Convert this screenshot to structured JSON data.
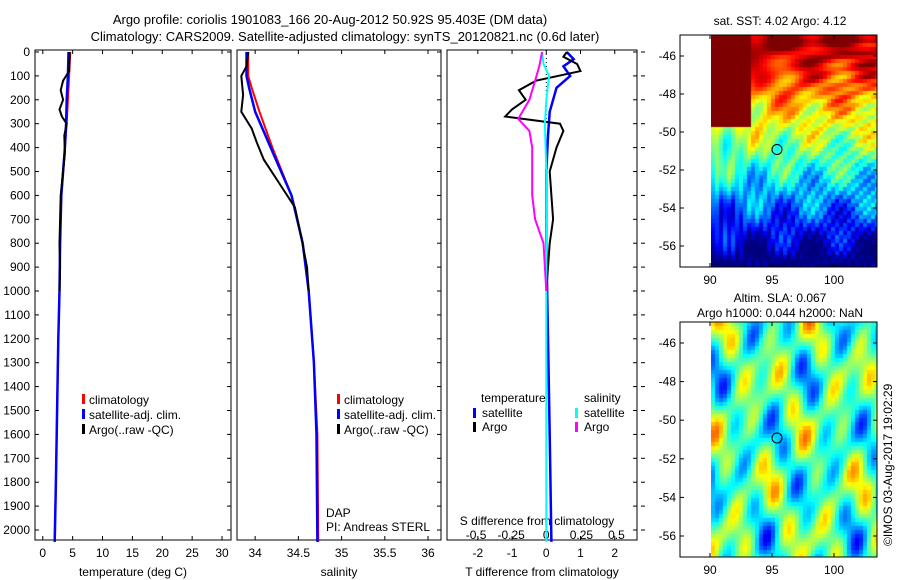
{
  "title_line1": "Argo profile: coriolis 1901083_166 20-Aug-2012 50.92S 95.403E (DM data)",
  "title_line2": "Climatology: CARS2009. Satellite-adjusted climatology: synTS_20120821.nc (0.6d later)",
  "colors": {
    "clim": "#ff0000",
    "sat": "#0000ff",
    "argo": "#000000",
    "sal_sat": "#00ffff",
    "sal_argo": "#ff00ff"
  },
  "chart_data": [
    {
      "type": "line",
      "xlabel": "temperature (deg C)",
      "ylabel": "",
      "xlim": [
        -1.3,
        31.5
      ],
      "ylim": [
        2050,
        0
      ],
      "xticks": [
        "0",
        "5",
        "10",
        "15",
        "20",
        "25",
        "30"
      ],
      "xtick_values": [
        0,
        5,
        10,
        15,
        20,
        25,
        30
      ],
      "yticks": [
        "0",
        "100",
        "200",
        "300",
        "400",
        "500",
        "600",
        "700",
        "800",
        "900",
        "1000",
        "1100",
        "1200",
        "1300",
        "1400",
        "1500",
        "1600",
        "1700",
        "1800",
        "1900",
        "2000"
      ],
      "legend": [
        "climatology",
        "satellite-adj. clim.",
        "Argo(..raw -QC)"
      ],
      "series": [
        {
          "name": "climatology",
          "color": "#ff0000",
          "depth": [
            0,
            100,
            200,
            300,
            400,
            500,
            600,
            800,
            1000,
            1200,
            1500,
            1800,
            2050
          ],
          "values": [
            4.6,
            4.4,
            4.2,
            4.0,
            3.7,
            3.4,
            3.1,
            2.9,
            2.8,
            2.6,
            2.4,
            2.2,
            2.0
          ]
        },
        {
          "name": "satellite-adj. clim.",
          "color": "#0000ff",
          "depth": [
            0,
            100,
            200,
            300,
            400,
            500,
            600,
            800,
            1000,
            1200,
            1500,
            1800,
            2050
          ],
          "values": [
            4.3,
            4.2,
            4.0,
            3.9,
            3.7,
            3.4,
            3.1,
            2.9,
            2.8,
            2.6,
            2.4,
            2.2,
            2.0
          ]
        },
        {
          "name": "Argo(..raw -QC)",
          "color": "#000000",
          "depth": [
            0,
            80,
            120,
            160,
            200,
            240,
            270,
            300,
            350,
            420,
            500,
            600,
            700,
            800,
            900,
            1000
          ],
          "values": [
            4.5,
            4.4,
            3.4,
            3.0,
            3.4,
            2.8,
            3.2,
            4.0,
            3.6,
            3.7,
            3.4,
            3.0,
            2.9,
            2.8,
            2.9,
            2.8
          ]
        }
      ]
    },
    {
      "type": "line",
      "xlabel": "salinity",
      "xlim": [
        33.79,
        36.15
      ],
      "ylim": [
        2050,
        0
      ],
      "xticks": [
        "34",
        "34.5",
        "35",
        "35.5",
        "36"
      ],
      "xtick_values": [
        34,
        34.5,
        35,
        35.5,
        36
      ],
      "legend": [
        "climatology",
        "satellite-adj. clim.",
        "Argo(..raw -QC)"
      ],
      "annotation": [
        "DAP",
        "PI: Andreas STERL"
      ],
      "series": [
        {
          "name": "climatology",
          "color": "#ff0000",
          "depth": [
            0,
            100,
            150,
            250,
            400,
            600,
            800,
            1000,
            1300,
            1600,
            2050
          ],
          "values": [
            33.92,
            33.92,
            33.96,
            34.05,
            34.2,
            34.42,
            34.55,
            34.62,
            34.68,
            34.72,
            34.73
          ]
        },
        {
          "name": "satellite-adj. clim.",
          "color": "#0000ff",
          "depth": [
            0,
            100,
            150,
            250,
            400,
            600,
            800,
            1000,
            1300,
            1600,
            2050
          ],
          "values": [
            33.9,
            33.9,
            33.93,
            34.0,
            34.18,
            34.42,
            34.55,
            34.62,
            34.68,
            34.71,
            34.72
          ]
        },
        {
          "name": "Argo(..raw -QC)",
          "color": "#000000",
          "depth": [
            0,
            60,
            100,
            180,
            250,
            320,
            380,
            450,
            550,
            650,
            750,
            900,
            1000
          ],
          "values": [
            33.92,
            33.9,
            33.84,
            33.86,
            33.84,
            33.96,
            34.02,
            34.1,
            34.28,
            34.46,
            34.52,
            34.6,
            34.62
          ]
        }
      ]
    },
    {
      "type": "line",
      "xlabel": "T difference from climatology",
      "x2label": "S difference from climatology",
      "xlim": [
        -2.9,
        2.65
      ],
      "ylim": [
        2050,
        0
      ],
      "xticks": [
        "-2",
        "-1",
        "0",
        "1",
        "2"
      ],
      "xtick_values": [
        -2,
        -1,
        0,
        1,
        2
      ],
      "x2ticks": [
        "-0.5",
        "-0.25",
        "0",
        "0.25",
        "0.5"
      ],
      "x2tick_values": [
        -0.5,
        -0.25,
        0,
        0.25,
        0.5
      ],
      "legend_titles": [
        "temperature",
        "salinity"
      ],
      "legend": [
        "satellite",
        "Argo",
        "satellite",
        "Argo"
      ],
      "series": [
        {
          "name": "temperature satellite",
          "color": "#0000ff",
          "units": "T",
          "depth": [
            0,
            30,
            60,
            100,
            150,
            250,
            350,
            500,
            800,
            1200,
            1600,
            2050
          ],
          "values": [
            0.6,
            0.8,
            0.5,
            0.7,
            0.3,
            0.1,
            0.05,
            0,
            0,
            0.05,
            0.1,
            0.15
          ]
        },
        {
          "name": "temperature Argo",
          "color": "#000000",
          "units": "T",
          "depth": [
            0,
            20,
            50,
            80,
            120,
            160,
            200,
            240,
            270,
            300,
            330,
            400,
            500,
            700,
            800,
            1000
          ],
          "values": [
            0.6,
            0.5,
            0.9,
            1.0,
            -0.3,
            -0.8,
            -0.6,
            -1.0,
            -1.2,
            0.4,
            0.5,
            0.3,
            0.1,
            0.2,
            0.1,
            0.0
          ]
        },
        {
          "name": "salinity satellite",
          "color": "#00ffff",
          "units": "S",
          "depth": [
            0,
            50,
            100,
            200,
            300,
            500,
            1000,
            2050
          ],
          "values": [
            -0.03,
            -0.02,
            0.02,
            0.0,
            -0.01,
            0,
            0,
            0
          ]
        },
        {
          "name": "salinity Argo",
          "color": "#ff00ff",
          "units": "S",
          "depth": [
            0,
            60,
            120,
            200,
            280,
            330,
            400,
            500,
            600,
            700,
            800,
            900,
            1000
          ],
          "values": [
            -0.03,
            -0.05,
            -0.08,
            -0.12,
            -0.2,
            -0.12,
            -0.1,
            -0.1,
            -0.1,
            -0.08,
            -0.02,
            -0.01,
            0
          ]
        }
      ]
    }
  ],
  "map_sst": {
    "title": "sat. SST: 4.02 Argo: 4.12",
    "xticks": [
      "90",
      "95",
      "100"
    ],
    "yticks": [
      "-46",
      "-48",
      "-50",
      "-52",
      "-54",
      "-56"
    ],
    "argo_lon": 95.403,
    "argo_lat": -50.92
  },
  "map_sla": {
    "title1": "Altim. SLA: 0.067",
    "title2": "Argo h1000: 0.044 h2000: NaN",
    "xticks": [
      "90",
      "95",
      "100"
    ],
    "yticks": [
      "-46",
      "-48",
      "-50",
      "-52",
      "-54",
      "-56"
    ],
    "argo_lon": 95.403,
    "argo_lat": -50.92
  },
  "credit": "©IMOS 03-Aug-2017 19:02:29"
}
